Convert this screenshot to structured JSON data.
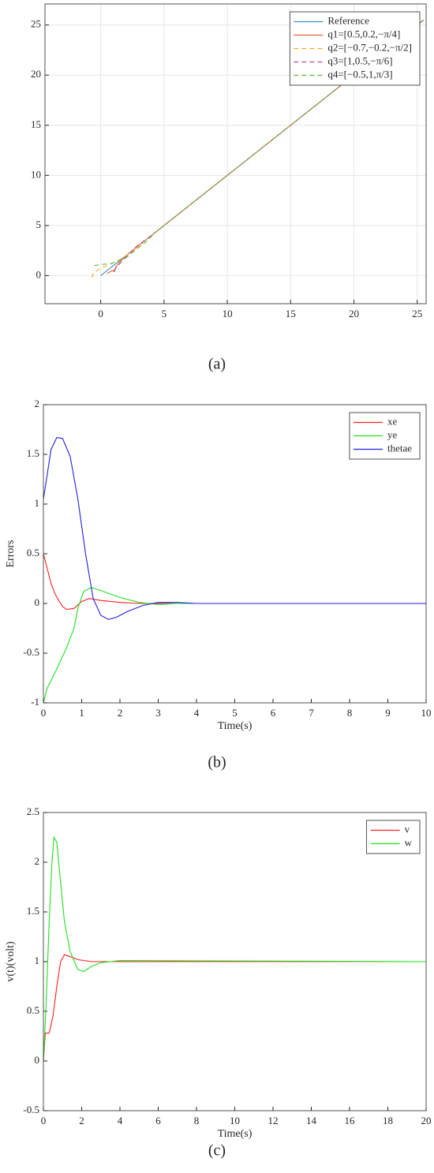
{
  "chart_data": [
    {
      "type": "line",
      "grid": true,
      "legend": "upper right",
      "xlim": [
        -4.4,
        25.7
      ],
      "ylim": [
        -2.8,
        27.1
      ],
      "xticks": [
        0,
        5,
        10,
        15,
        20,
        25
      ],
      "yticks": [
        0,
        5,
        10,
        15,
        20,
        25
      ],
      "series": [
        {
          "name": "Reference",
          "color": "#3d8fc8",
          "dash": false,
          "x": [
            0,
            25.5
          ],
          "values": [
            0,
            25.5
          ]
        },
        {
          "name": "q1=[0.5,0.2,−π/4]",
          "color": "#e0643a",
          "dash": false,
          "x": [
            0.5,
            0.9,
            1.1,
            1.2,
            1.6,
            2.2,
            3,
            4,
            25.5
          ],
          "values": [
            0.2,
            0.5,
            0.4,
            0.9,
            1.5,
            2.2,
            3,
            4,
            25.5
          ]
        },
        {
          "name": "q2=[−0.7,−0.2,−π/2]",
          "color": "#edb120",
          "dash": true,
          "x": [
            -0.7,
            -0.6,
            -0.2,
            0.5,
            1.5,
            2.5,
            3.5,
            4.2,
            25.5
          ],
          "values": [
            -0.2,
            0.2,
            0.6,
            1,
            1.6,
            2.4,
            3.5,
            4.2,
            25.5
          ]
        },
        {
          "name": "q3=[1,0.5,−π/6]",
          "color": "#c04aa0",
          "dash": true,
          "x": [
            1,
            1.3,
            1.8,
            2.4,
            3,
            3.8,
            25.5
          ],
          "values": [
            0.5,
            0.9,
            1.6,
            2.4,
            3.1,
            3.8,
            25.5
          ]
        },
        {
          "name": "q4=[−0.5,1,π/3]",
          "color": "#5cb83a",
          "dash": true,
          "x": [
            -0.5,
            0,
            0.8,
            1.8,
            2.8,
            3.6,
            4.3,
            25.5
          ],
          "values": [
            1,
            1.1,
            1.2,
            1.6,
            2.6,
            3.4,
            4.3,
            25.5
          ]
        }
      ]
    },
    {
      "type": "line",
      "grid": false,
      "legend": "upper right",
      "xlabel": "Time(s)",
      "ylabel": "Errors",
      "xlim": [
        0,
        10
      ],
      "ylim": [
        -1,
        2
      ],
      "xticks": [
        0,
        1,
        2,
        3,
        4,
        5,
        6,
        7,
        8,
        9,
        10
      ],
      "yticks": [
        -1,
        -0.5,
        0,
        0.5,
        1,
        1.5,
        2
      ],
      "series": [
        {
          "name": "xe",
          "color": "#ff2020",
          "dash": false,
          "x": [
            0,
            0.1,
            0.2,
            0.3,
            0.4,
            0.5,
            0.6,
            0.8,
            1,
            1.2,
            1.5,
            2,
            2.5,
            3,
            10
          ],
          "values": [
            0.5,
            0.35,
            0.2,
            0.1,
            0.03,
            -0.03,
            -0.06,
            -0.05,
            0.02,
            0.05,
            0.03,
            0.01,
            0,
            0,
            0
          ]
        },
        {
          "name": "ye",
          "color": "#20e020",
          "dash": false,
          "x": [
            0,
            0.1,
            0.3,
            0.6,
            0.8,
            0.9,
            1.05,
            1.25,
            1.5,
            2,
            2.5,
            3,
            3.5,
            10
          ],
          "values": [
            -1,
            -0.85,
            -0.7,
            -0.45,
            -0.25,
            -0.05,
            0.12,
            0.16,
            0.13,
            0.06,
            0.01,
            -0.01,
            0,
            0
          ]
        },
        {
          "name": "thetae",
          "color": "#2020e0",
          "dash": false,
          "x": [
            0,
            0.1,
            0.2,
            0.35,
            0.5,
            0.7,
            0.9,
            1.1,
            1.3,
            1.5,
            1.7,
            1.9,
            2.2,
            2.6,
            3,
            3.5,
            4,
            10
          ],
          "values": [
            1.05,
            1.3,
            1.55,
            1.67,
            1.66,
            1.48,
            1.05,
            0.5,
            0.05,
            -0.12,
            -0.16,
            -0.14,
            -0.08,
            -0.02,
            0.01,
            0.01,
            0,
            0
          ]
        }
      ]
    },
    {
      "type": "line",
      "grid": false,
      "legend": "upper right",
      "xlabel": "Time(s)",
      "ylabel": "v(t)(volt)",
      "xlim": [
        0,
        20
      ],
      "ylim": [
        -0.5,
        2.5
      ],
      "xticks": [
        0,
        2,
        4,
        6,
        8,
        10,
        12,
        14,
        16,
        18,
        20
      ],
      "yticks": [
        -0.5,
        0,
        0.5,
        1,
        1.5,
        2,
        2.5
      ],
      "series": [
        {
          "name": "v",
          "color": "#ff2020",
          "dash": false,
          "x": [
            0,
            0.1,
            0.3,
            0.5,
            0.7,
            0.9,
            1.1,
            1.4,
            1.8,
            2.5,
            20
          ],
          "values": [
            0,
            0.28,
            0.28,
            0.45,
            0.75,
            1,
            1.07,
            1.05,
            1.02,
            1,
            1
          ]
        },
        {
          "name": "w",
          "color": "#20e020",
          "dash": false,
          "x": [
            0,
            0.15,
            0.3,
            0.45,
            0.55,
            0.7,
            0.9,
            1.1,
            1.4,
            1.8,
            2.1,
            2.5,
            3,
            3.5,
            4,
            20
          ],
          "values": [
            0,
            0.6,
            1.4,
            2,
            2.25,
            2.2,
            1.8,
            1.4,
            1.1,
            0.92,
            0.9,
            0.95,
            0.99,
            1,
            1.01,
            1
          ]
        }
      ]
    }
  ],
  "captions": [
    "(a)",
    "(b)",
    "(c)"
  ]
}
